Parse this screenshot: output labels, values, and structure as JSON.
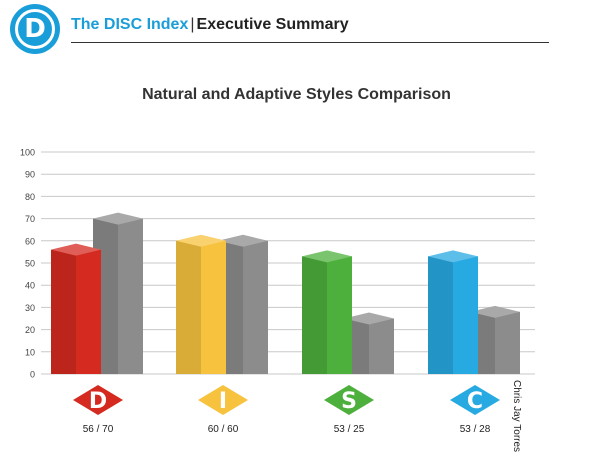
{
  "header": {
    "logo_letter": "D",
    "brand": "The DISC Index",
    "separator": "|",
    "subtitle": "Executive Summary"
  },
  "side_text": "Chris Jay Torres",
  "chart_data": {
    "type": "bar",
    "title": "Natural and Adaptive Styles Comparison",
    "xlabel": "",
    "ylabel": "",
    "ylim": [
      0,
      100
    ],
    "yticks": [
      0,
      10,
      20,
      30,
      40,
      50,
      60,
      70,
      80,
      90,
      100
    ],
    "grid": true,
    "categories": [
      "D",
      "I",
      "S",
      "C"
    ],
    "category_labels": [
      "56 / 70",
      "60 / 60",
      "53 / 25",
      "53 / 28"
    ],
    "series": [
      {
        "values": [
          56,
          60,
          53,
          53
        ]
      },
      {
        "values": [
          70,
          60,
          25,
          28
        ]
      }
    ],
    "colors": {
      "natural": [
        "#d42a20",
        "#f7c23e",
        "#4db03c",
        "#27a9e1"
      ],
      "adaptive": "#8c8c8c"
    }
  }
}
